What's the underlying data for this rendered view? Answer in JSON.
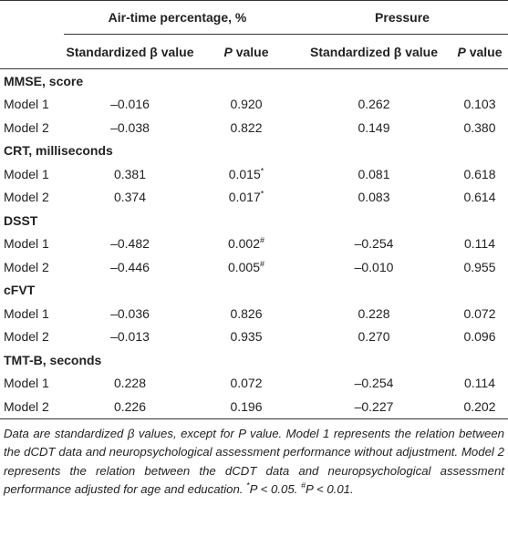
{
  "table": {
    "groups": [
      "Air-time percentage, %",
      "Pressure"
    ],
    "columns": [
      [
        "Standardized β value"
      ],
      [
        "P",
        " value"
      ],
      [
        "Standardized β value"
      ],
      [
        "P",
        " value"
      ]
    ],
    "sections": [
      {
        "title": "MMSE, score",
        "rows": [
          {
            "label": "Model 1",
            "cells": [
              {
                "value": "–0.016"
              },
              {
                "value": "0.920"
              },
              {
                "value": "0.262"
              },
              {
                "value": "0.103"
              }
            ]
          },
          {
            "label": "Model 2",
            "cells": [
              {
                "value": "–0.038"
              },
              {
                "value": "0.822"
              },
              {
                "value": "0.149"
              },
              {
                "value": "0.380"
              }
            ]
          }
        ]
      },
      {
        "title": "CRT, milliseconds",
        "rows": [
          {
            "label": "Model 1",
            "cells": [
              {
                "value": "0.381"
              },
              {
                "value": "0.015",
                "note": "*"
              },
              {
                "value": "0.081"
              },
              {
                "value": "0.618"
              }
            ]
          },
          {
            "label": "Model 2",
            "cells": [
              {
                "value": "0.374"
              },
              {
                "value": "0.017",
                "note": "*"
              },
              {
                "value": "0.083"
              },
              {
                "value": "0.614"
              }
            ]
          }
        ]
      },
      {
        "title": "DSST",
        "rows": [
          {
            "label": "Model 1",
            "cells": [
              {
                "value": "–0.482"
              },
              {
                "value": "0.002",
                "note": "#"
              },
              {
                "value": "–0.254"
              },
              {
                "value": "0.114"
              }
            ]
          },
          {
            "label": "Model 2",
            "cells": [
              {
                "value": "–0.446"
              },
              {
                "value": "0.005",
                "note": "#"
              },
              {
                "value": "–0.010"
              },
              {
                "value": "0.955"
              }
            ]
          }
        ]
      },
      {
        "title": "cFVT",
        "rows": [
          {
            "label": "Model 1",
            "cells": [
              {
                "value": "–0.036"
              },
              {
                "value": "0.826"
              },
              {
                "value": "0.228"
              },
              {
                "value": "0.072"
              }
            ]
          },
          {
            "label": "Model 2",
            "cells": [
              {
                "value": "–0.013"
              },
              {
                "value": "0.935"
              },
              {
                "value": "0.270"
              },
              {
                "value": "0.096"
              }
            ]
          }
        ]
      },
      {
        "title": "TMT-B, seconds",
        "rows": [
          {
            "label": "Model 1",
            "cells": [
              {
                "value": "0.228"
              },
              {
                "value": "0.072"
              },
              {
                "value": "–0.254"
              },
              {
                "value": "0.114"
              }
            ]
          },
          {
            "label": "Model 2",
            "cells": [
              {
                "value": "0.226"
              },
              {
                "value": "0.196"
              },
              {
                "value": "–0.227"
              },
              {
                "value": "0.202"
              }
            ]
          }
        ]
      }
    ]
  },
  "footnote": {
    "text": "Data are standardized β values, except for P value. Model 1 represents the relation between the dCDT data and neuropsychological assessment performance without adjustment. Model 2 represents the relation between the dCDT data and neuropsychological assessment performance adjusted for age and education.",
    "notes": [
      {
        "mark": "*",
        "text": "P < 0.05."
      },
      {
        "mark": "#",
        "text": "P < 0.01."
      }
    ]
  }
}
